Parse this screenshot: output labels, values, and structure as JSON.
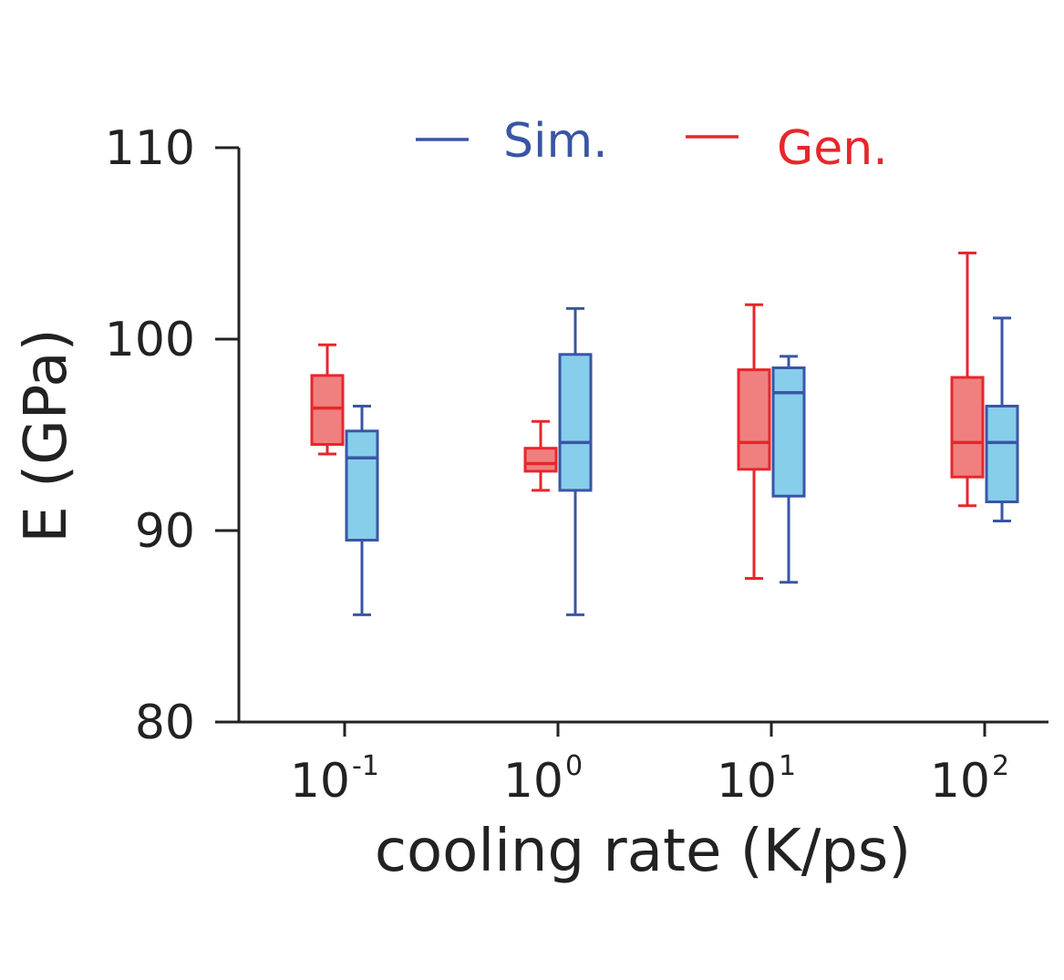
{
  "chart_data": {
    "type": "box",
    "xlabel": "cooling rate (K/ps)",
    "ylabel": "E (GPa)",
    "ylim": [
      80,
      110
    ],
    "yticks": [
      "80",
      "90",
      "100",
      "110"
    ],
    "categories": [
      {
        "base": "10",
        "exp": "-1"
      },
      {
        "base": "10",
        "exp": "0"
      },
      {
        "base": "10",
        "exp": "1"
      },
      {
        "base": "10",
        "exp": "2"
      }
    ],
    "legend_position": "top",
    "series": [
      {
        "name": "Gen.",
        "color": "#e8262b",
        "fill": "#f08080",
        "boxes": [
          {
            "whislo": 94.0,
            "q1": 94.5,
            "med": 96.4,
            "q3": 98.1,
            "whishi": 99.7
          },
          {
            "whislo": 92.1,
            "q1": 93.1,
            "med": 93.5,
            "q3": 94.3,
            "whishi": 95.7
          },
          {
            "whislo": 87.5,
            "q1": 93.2,
            "med": 94.6,
            "q3": 98.4,
            "whishi": 101.8
          },
          {
            "whislo": 91.3,
            "q1": 92.8,
            "med": 94.6,
            "q3": 98.0,
            "whishi": 104.5
          }
        ]
      },
      {
        "name": "Sim.",
        "color": "#3a55a4",
        "fill": "#87ceeb",
        "boxes": [
          {
            "whislo": 85.6,
            "q1": 89.5,
            "med": 93.8,
            "q3": 95.2,
            "whishi": 96.5
          },
          {
            "whislo": 85.6,
            "q1": 92.1,
            "med": 94.6,
            "q3": 99.2,
            "whishi": 101.6
          },
          {
            "whislo": 87.3,
            "q1": 91.8,
            "med": 97.2,
            "q3": 98.5,
            "whishi": 99.1
          },
          {
            "whislo": 90.5,
            "q1": 91.5,
            "med": 94.6,
            "q3": 96.5,
            "whishi": 101.1
          }
        ]
      }
    ],
    "legend_order": [
      "Sim.",
      "Gen."
    ]
  }
}
